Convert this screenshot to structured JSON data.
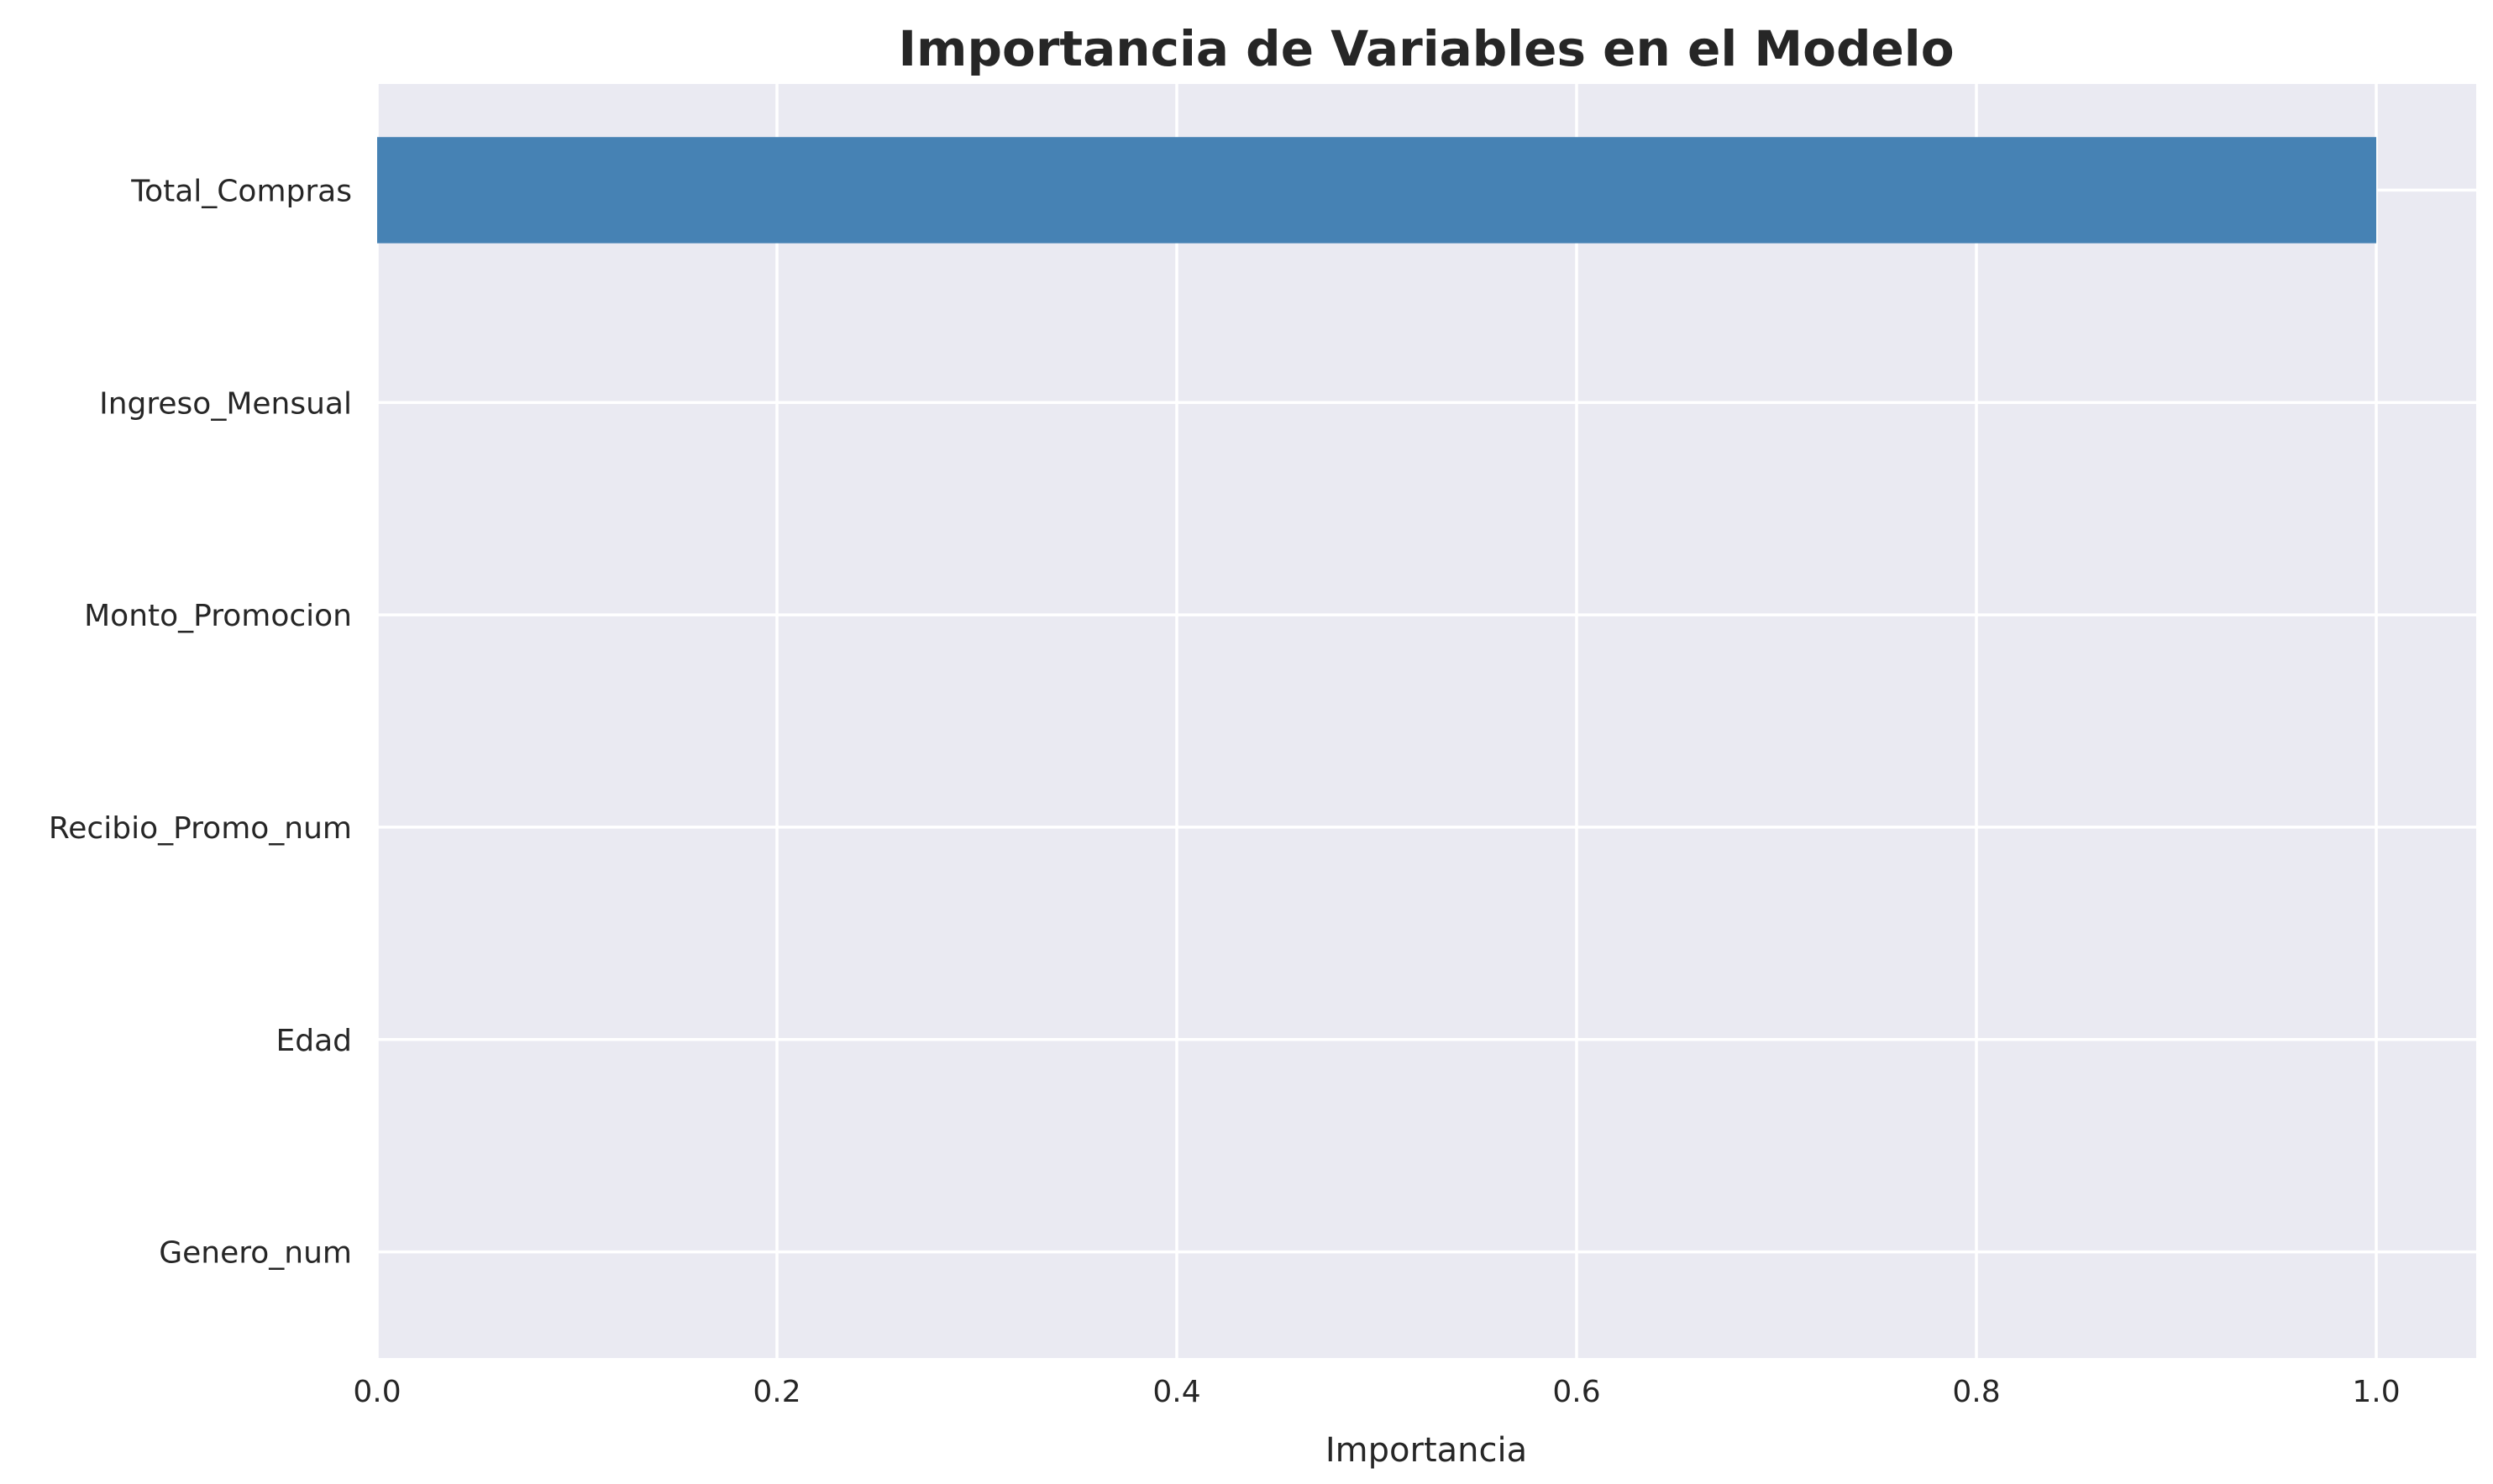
{
  "chart_data": {
    "type": "bar",
    "orientation": "horizontal",
    "title": "Importancia de Variables en el Modelo",
    "xlabel": "Importancia",
    "ylabel": "",
    "categories": [
      "Total_Compras",
      "Ingreso_Mensual",
      "Monto_Promocion",
      "Recibio_Promo_num",
      "Edad",
      "Genero_num"
    ],
    "values": [
      1.0,
      0.0,
      0.0,
      0.0,
      0.0,
      0.0
    ],
    "xlim": [
      0.0,
      1.05
    ],
    "xticks": [
      0.0,
      0.2,
      0.4,
      0.6,
      0.8,
      1.0
    ],
    "xtick_labels": [
      "0.0",
      "0.2",
      "0.4",
      "0.6",
      "0.8",
      "1.0"
    ],
    "grid": true,
    "colors": {
      "bar": "#4682b4",
      "plot_background": "#eaeaf2",
      "grid": "#ffffff",
      "text": "#262626"
    }
  }
}
